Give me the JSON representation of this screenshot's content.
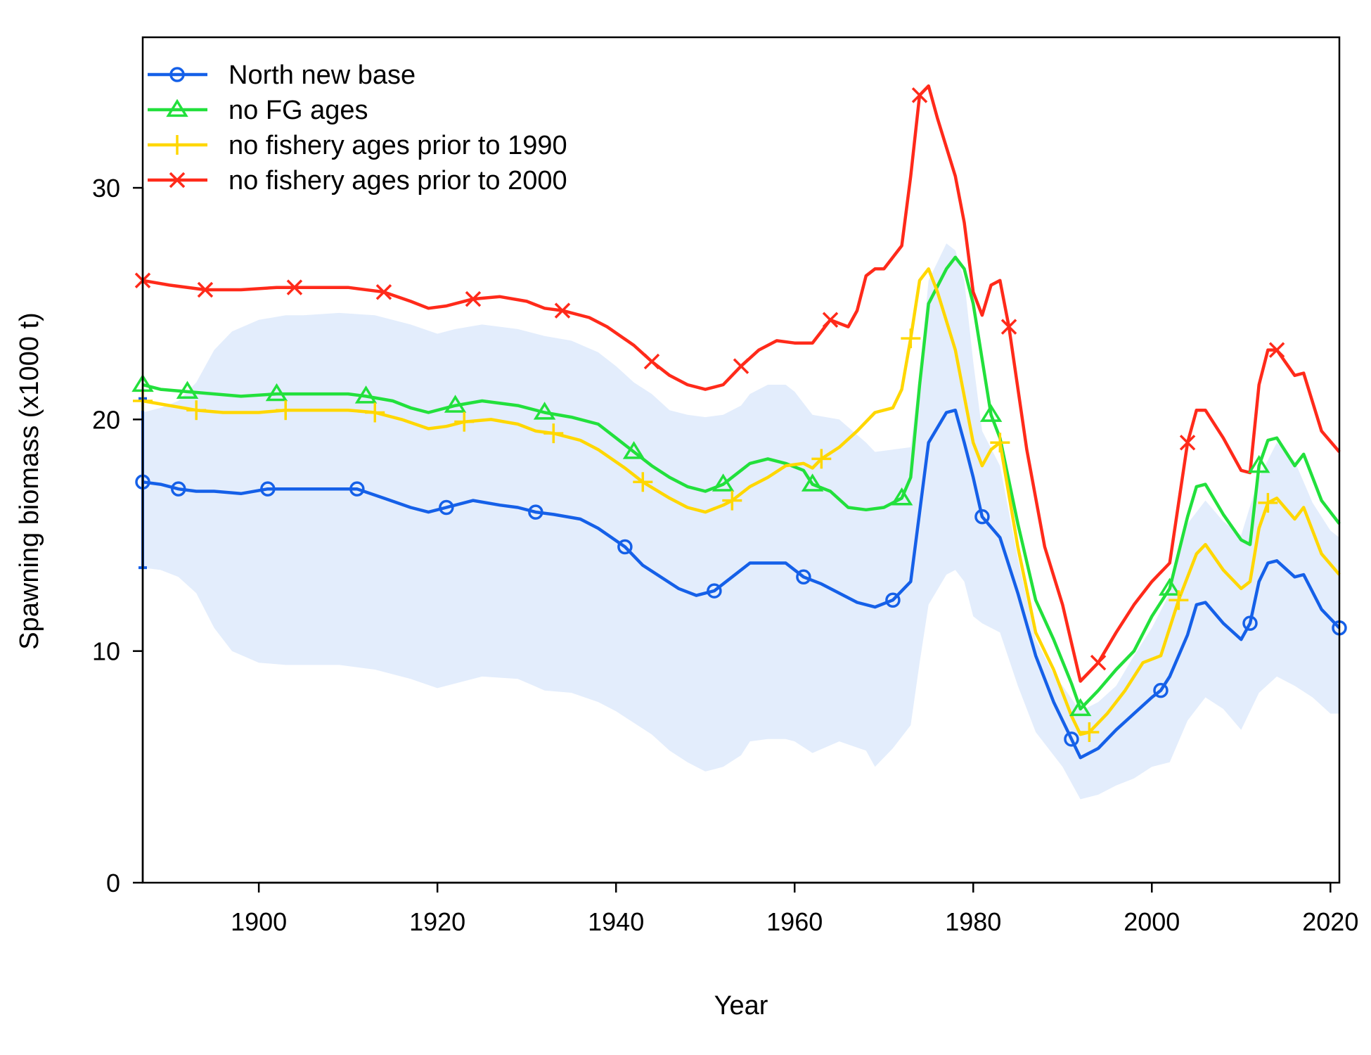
{
  "chart_data": {
    "type": "line",
    "title": "",
    "xlabel": "Year",
    "ylabel": "Spawning biomass (x1000 t)",
    "xlim": [
      1887,
      2021
    ],
    "ylim": [
      0,
      36.5
    ],
    "x_ticks": [
      1900,
      1920,
      1940,
      1960,
      1980,
      2000,
      2020
    ],
    "y_ticks": [
      0,
      10,
      20,
      30
    ],
    "legend_position": "top-left",
    "ci_band": {
      "color": "#e3edfc",
      "points": [
        [
          1887,
          20.3,
          13.6
        ],
        [
          1889,
          20.5,
          13.5
        ],
        [
          1891,
          20.8,
          13.2
        ],
        [
          1893,
          21.6,
          12.5
        ],
        [
          1895,
          23.0,
          11.0
        ],
        [
          1897,
          23.8,
          10.0
        ],
        [
          1900,
          24.3,
          9.5
        ],
        [
          1903,
          24.5,
          9.4
        ],
        [
          1905,
          24.5,
          9.4
        ],
        [
          1909,
          24.6,
          9.4
        ],
        [
          1913,
          24.5,
          9.2
        ],
        [
          1917,
          24.1,
          8.8
        ],
        [
          1920,
          23.7,
          8.4
        ],
        [
          1922,
          23.9,
          8.6
        ],
        [
          1925,
          24.1,
          8.9
        ],
        [
          1929,
          23.9,
          8.8
        ],
        [
          1932,
          23.6,
          8.3
        ],
        [
          1935,
          23.4,
          8.2
        ],
        [
          1938,
          22.9,
          7.8
        ],
        [
          1940,
          22.3,
          7.4
        ],
        [
          1942,
          21.6,
          6.9
        ],
        [
          1944,
          21.1,
          6.4
        ],
        [
          1946,
          20.4,
          5.7
        ],
        [
          1948,
          20.2,
          5.2
        ],
        [
          1950,
          20.1,
          4.8
        ],
        [
          1952,
          20.2,
          5.0
        ],
        [
          1954,
          20.6,
          5.5
        ],
        [
          1955,
          21.1,
          6.1
        ],
        [
          1957,
          21.5,
          6.2
        ],
        [
          1959,
          21.5,
          6.2
        ],
        [
          1960,
          21.2,
          6.1
        ],
        [
          1962,
          20.2,
          5.6
        ],
        [
          1965,
          20.0,
          6.1
        ],
        [
          1968,
          19.0,
          5.7
        ],
        [
          1969,
          18.6,
          5.0
        ],
        [
          1971,
          18.7,
          5.8
        ],
        [
          1973,
          18.8,
          6.8
        ],
        [
          1974,
          22.0,
          9.5
        ],
        [
          1975,
          26.0,
          12.0
        ],
        [
          1977,
          27.6,
          13.3
        ],
        [
          1978,
          27.3,
          13.5
        ],
        [
          1979,
          26.0,
          13.0
        ],
        [
          1980,
          22.5,
          11.5
        ],
        [
          1981,
          19.5,
          11.2
        ],
        [
          1983,
          18.0,
          10.8
        ],
        [
          1985,
          14.0,
          8.5
        ],
        [
          1987,
          10.5,
          6.5
        ],
        [
          1989,
          9.0,
          5.5
        ],
        [
          1990,
          8.5,
          5.0
        ],
        [
          1992,
          7.4,
          3.6
        ],
        [
          1994,
          7.8,
          3.8
        ],
        [
          1996,
          8.5,
          4.2
        ],
        [
          1998,
          9.8,
          4.5
        ],
        [
          2000,
          11.0,
          5.0
        ],
        [
          2002,
          12.5,
          5.2
        ],
        [
          2004,
          15.5,
          7.0
        ],
        [
          2006,
          16.5,
          8.0
        ],
        [
          2008,
          15.6,
          7.5
        ],
        [
          2010,
          15.0,
          6.6
        ],
        [
          2012,
          17.5,
          8.2
        ],
        [
          2014,
          19.0,
          8.9
        ],
        [
          2016,
          18.2,
          8.5
        ],
        [
          2018,
          16.4,
          8.0
        ],
        [
          2020,
          15.2,
          7.3
        ],
        [
          2021,
          14.9,
          7.3
        ]
      ]
    },
    "series": [
      {
        "name": "North new base",
        "color": "#1560e8",
        "marker": "circle",
        "x": [
          1887,
          1889,
          1891,
          1893,
          1895,
          1898,
          1901,
          1905,
          1908,
          1911,
          1914,
          1917,
          1919,
          1921,
          1924,
          1927,
          1929,
          1931,
          1933,
          1936,
          1938,
          1941,
          1943,
          1945,
          1947,
          1949,
          1951,
          1953,
          1955,
          1957,
          1959,
          1961,
          1963,
          1965,
          1967,
          1969,
          1971,
          1973,
          1974,
          1975,
          1977,
          1978,
          1979,
          1980,
          1981,
          1983,
          1985,
          1987,
          1989,
          1991,
          1992,
          1994,
          1996,
          1998,
          2000,
          2001,
          2002,
          2004,
          2005,
          2006,
          2008,
          2010,
          2011,
          2012,
          2013,
          2014,
          2016,
          2017,
          2019,
          2021
        ],
        "y": [
          17.3,
          17.2,
          17.0,
          16.9,
          16.9,
          16.8,
          17.0,
          17.0,
          17.0,
          17.0,
          16.6,
          16.2,
          16.0,
          16.2,
          16.5,
          16.3,
          16.2,
          16.0,
          15.9,
          15.7,
          15.3,
          14.5,
          13.7,
          13.2,
          12.7,
          12.4,
          12.6,
          13.2,
          13.8,
          13.8,
          13.8,
          13.2,
          12.9,
          12.5,
          12.1,
          11.9,
          12.2,
          13.0,
          16.0,
          19.0,
          20.3,
          20.4,
          19.0,
          17.5,
          15.8,
          14.9,
          12.5,
          9.8,
          7.8,
          6.2,
          5.4,
          5.8,
          6.6,
          7.3,
          8.0,
          8.3,
          8.9,
          10.7,
          12.0,
          12.1,
          11.2,
          10.5,
          11.2,
          13.0,
          13.8,
          13.9,
          13.2,
          13.3,
          11.8,
          11.0
        ]
      },
      {
        "name": "no FG ages",
        "color": "#22e03c",
        "marker": "triangle",
        "x": [
          1887,
          1889,
          1892,
          1895,
          1898,
          1902,
          1906,
          1910,
          1912,
          1915,
          1917,
          1919,
          1922,
          1925,
          1929,
          1932,
          1935,
          1938,
          1940,
          1942,
          1944,
          1946,
          1948,
          1950,
          1952,
          1954,
          1955,
          1957,
          1959,
          1961,
          1962,
          1964,
          1966,
          1968,
          1970,
          1972,
          1973,
          1974,
          1975,
          1977,
          1978,
          1979,
          1980,
          1982,
          1983,
          1985,
          1987,
          1989,
          1991,
          1992,
          1994,
          1996,
          1998,
          2000,
          2002,
          2004,
          2005,
          2006,
          2008,
          2010,
          2011,
          2012,
          2013,
          2014,
          2016,
          2017,
          2019,
          2021
        ],
        "y": [
          21.5,
          21.3,
          21.2,
          21.1,
          21.0,
          21.1,
          21.1,
          21.1,
          21.0,
          20.8,
          20.5,
          20.3,
          20.6,
          20.8,
          20.6,
          20.3,
          20.1,
          19.8,
          19.2,
          18.6,
          18.0,
          17.5,
          17.1,
          16.9,
          17.2,
          17.8,
          18.1,
          18.3,
          18.1,
          17.8,
          17.2,
          16.9,
          16.2,
          16.1,
          16.2,
          16.6,
          17.5,
          21.5,
          25.0,
          26.5,
          27.0,
          26.5,
          25.0,
          20.2,
          19.2,
          15.5,
          12.2,
          10.5,
          8.6,
          7.5,
          8.3,
          9.2,
          10.0,
          11.5,
          12.7,
          15.8,
          17.1,
          17.2,
          15.9,
          14.8,
          14.6,
          18.0,
          19.1,
          19.2,
          18.0,
          18.5,
          16.5,
          15.5
        ]
      },
      {
        "name": "no fishery ages prior to 1990",
        "color": "#ffd700",
        "marker": "plus",
        "x": [
          1887,
          1890,
          1893,
          1896,
          1900,
          1903,
          1907,
          1910,
          1913,
          1916,
          1919,
          1921,
          1923,
          1926,
          1929,
          1931,
          1933,
          1936,
          1938,
          1941,
          1943,
          1946,
          1948,
          1950,
          1952,
          1953,
          1955,
          1957,
          1959,
          1961,
          1962,
          1963,
          1965,
          1967,
          1969,
          1971,
          1972,
          1973,
          1974,
          1975,
          1976,
          1978,
          1979,
          1980,
          1981,
          1982,
          1983,
          1985,
          1987,
          1989,
          1991,
          1992,
          1993,
          1995,
          1997,
          1999,
          2001,
          2003,
          2005,
          2006,
          2008,
          2010,
          2011,
          2012,
          2013,
          2014,
          2016,
          2017,
          2019,
          2021
        ],
        "y": [
          20.8,
          20.6,
          20.4,
          20.3,
          20.3,
          20.4,
          20.4,
          20.4,
          20.3,
          20.0,
          19.6,
          19.7,
          19.9,
          20.0,
          19.8,
          19.5,
          19.4,
          19.1,
          18.7,
          17.9,
          17.3,
          16.6,
          16.2,
          16.0,
          16.3,
          16.5,
          17.1,
          17.5,
          18.0,
          18.1,
          17.9,
          18.3,
          18.8,
          19.5,
          20.3,
          20.5,
          21.3,
          23.5,
          26.0,
          26.5,
          25.5,
          23.0,
          21.0,
          19.0,
          18.0,
          18.7,
          19.0,
          14.5,
          10.8,
          9.2,
          7.2,
          6.4,
          6.5,
          7.3,
          8.3,
          9.5,
          9.8,
          12.2,
          14.2,
          14.6,
          13.5,
          12.7,
          13.0,
          15.3,
          16.4,
          16.6,
          15.7,
          16.2,
          14.2,
          13.3
        ]
      },
      {
        "name": "no fishery ages prior to 2000",
        "color": "#ff2a1a",
        "marker": "x",
        "x": [
          1887,
          1890,
          1894,
          1898,
          1902,
          1905,
          1910,
          1914,
          1917,
          1919,
          1921,
          1924,
          1927,
          1930,
          1932,
          1934,
          1937,
          1939,
          1942,
          1944,
          1946,
          1948,
          1950,
          1952,
          1954,
          1956,
          1958,
          1960,
          1962,
          1964,
          1966,
          1967,
          1968,
          1969,
          1970,
          1972,
          1973,
          1974,
          1975,
          1976,
          1978,
          1979,
          1980,
          1981,
          1982,
          1983,
          1984,
          1986,
          1988,
          1990,
          1992,
          1994,
          1996,
          1998,
          2000,
          2002,
          2004,
          2005,
          2006,
          2008,
          2010,
          2011,
          2012,
          2013,
          2014,
          2016,
          2017,
          2019,
          2021
        ],
        "y": [
          26.0,
          25.8,
          25.6,
          25.6,
          25.7,
          25.7,
          25.7,
          25.5,
          25.1,
          24.8,
          24.9,
          25.2,
          25.3,
          25.1,
          24.8,
          24.7,
          24.4,
          24.0,
          23.2,
          22.5,
          21.9,
          21.5,
          21.3,
          21.5,
          22.3,
          23.0,
          23.4,
          23.3,
          23.3,
          24.3,
          24.0,
          24.7,
          26.2,
          26.5,
          26.5,
          27.5,
          30.5,
          34.0,
          34.4,
          33.0,
          30.5,
          28.5,
          25.5,
          24.5,
          25.8,
          26.0,
          24.0,
          18.7,
          14.5,
          12.0,
          8.7,
          9.5,
          10.8,
          12.0,
          13.0,
          13.8,
          19.0,
          20.4,
          20.4,
          19.2,
          17.8,
          17.7,
          21.5,
          23.0,
          23.0,
          21.9,
          22.0,
          19.5,
          18.6
        ]
      }
    ],
    "error_bar": {
      "series": "North new base",
      "color": "#1560e8",
      "x": 1887,
      "y": 17.3,
      "low": 13.6,
      "high": 20.9
    }
  }
}
